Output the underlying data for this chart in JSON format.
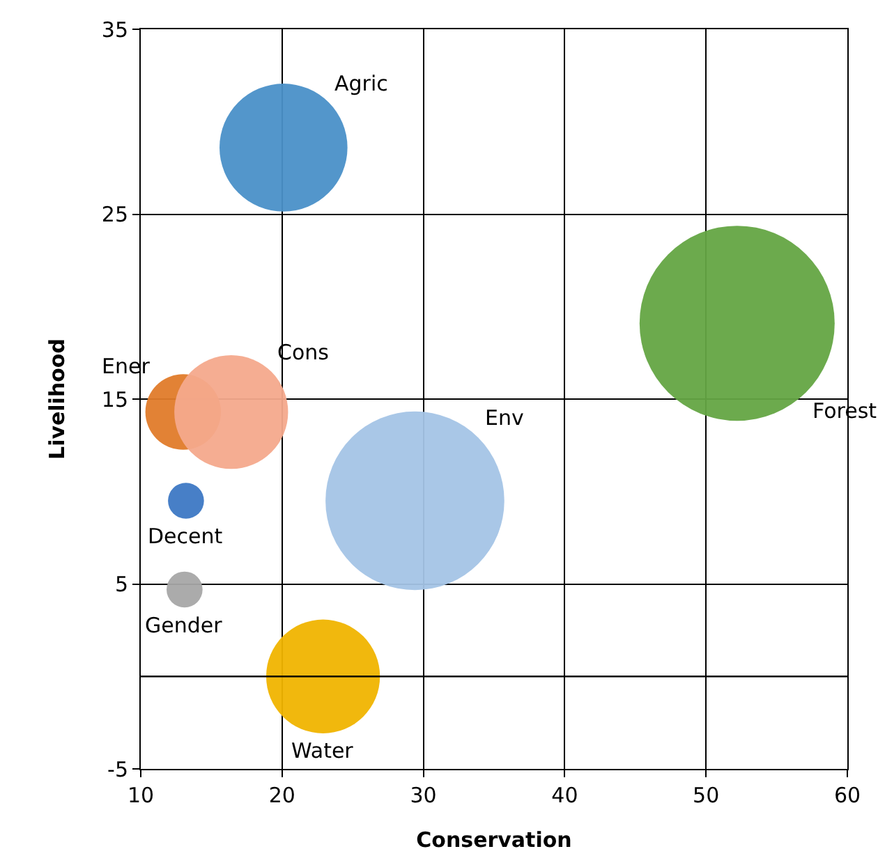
{
  "chart_data": {
    "type": "bubble",
    "xlabel": "Conservation",
    "ylabel": "Livelihood",
    "xlim": [
      10,
      60
    ],
    "xticks": [
      10,
      20,
      30,
      40,
      50,
      60
    ],
    "ylim": [
      -5,
      35
    ],
    "yticks": [
      -5,
      5,
      15,
      25,
      35
    ],
    "grid": true,
    "legend": false,
    "ref_lines": [
      {
        "axis": "y",
        "value": 0,
        "color": "#000000"
      }
    ],
    "series": [
      {
        "name": "Agric",
        "color": "#4a90c8",
        "x": [
          20.1
        ],
        "values": [
          28.6
        ],
        "sizes": [
          0.43
        ]
      },
      {
        "name": "Ener",
        "color": "#e07b2a",
        "x": [
          13.0
        ],
        "values": [
          14.3
        ],
        "sizes": [
          0.15
        ]
      },
      {
        "name": "Cons",
        "color": "#f4a98c",
        "x": [
          16.4
        ],
        "values": [
          14.3
        ],
        "sizes": [
          0.34
        ]
      },
      {
        "name": "Decent",
        "color": "#3d78c4",
        "x": [
          13.2
        ],
        "values": [
          9.5
        ],
        "sizes": [
          0.034
        ]
      },
      {
        "name": "Gender",
        "color": "#a6a6a6",
        "x": [
          13.1
        ],
        "values": [
          4.7
        ],
        "sizes": [
          0.034
        ]
      },
      {
        "name": "Env",
        "color": "#a4c4e6",
        "x": [
          29.4
        ],
        "values": [
          9.5
        ],
        "sizes": [
          0.84
        ]
      },
      {
        "name": "Water",
        "color": "#f0b400",
        "x": [
          22.9
        ],
        "values": [
          0
        ],
        "sizes": [
          0.34
        ]
      },
      {
        "name": "Forest",
        "color": "#64a543",
        "x": [
          52.2
        ],
        "values": [
          19.1
        ],
        "sizes": [
          1
        ]
      }
    ]
  }
}
